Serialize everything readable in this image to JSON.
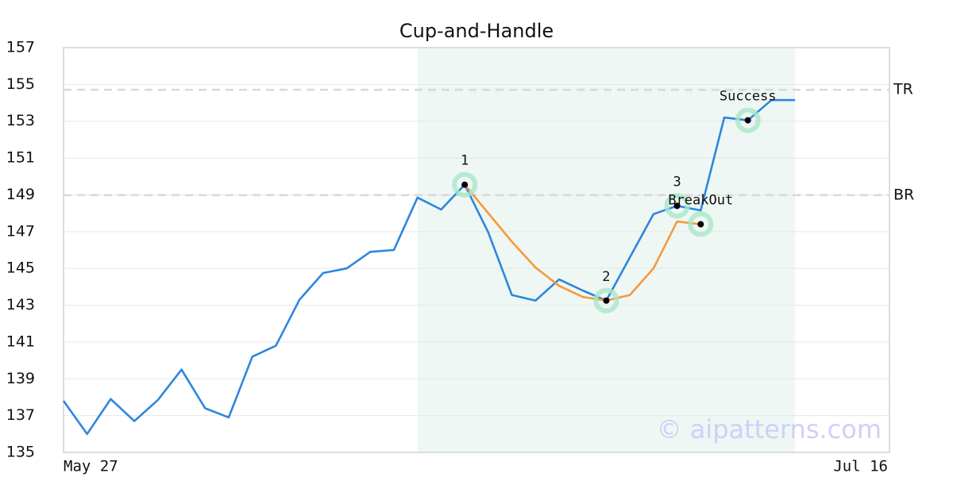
{
  "chart_data": {
    "type": "line",
    "title": "Cup-and-Handle",
    "x": [
      0,
      1,
      2,
      3,
      4,
      5,
      6,
      7,
      8,
      9,
      10,
      11,
      12,
      13,
      14,
      15,
      16,
      17,
      18,
      19,
      20,
      21,
      22,
      23,
      24,
      25,
      26,
      27,
      28,
      29,
      30,
      31
    ],
    "series": [
      {
        "color": "#2e86de",
        "values": [
          137.8,
          136.0,
          137.9,
          136.7,
          137.85,
          139.5,
          137.4,
          136.9,
          140.2,
          140.8,
          143.3,
          144.75,
          145.0,
          145.9,
          146.0,
          148.85,
          148.2,
          149.55,
          146.95,
          143.55,
          143.25,
          144.4,
          143.8,
          143.25,
          145.6,
          147.95,
          148.4,
          148.15,
          153.2,
          153.05,
          154.15,
          154.15
        ]
      },
      {
        "color": "#f59a3c",
        "values": [
          null,
          null,
          null,
          null,
          null,
          null,
          null,
          null,
          null,
          null,
          null,
          null,
          null,
          null,
          null,
          null,
          null,
          149.55,
          148.0,
          146.45,
          145.05,
          144.05,
          143.45,
          143.25,
          143.55,
          145.0,
          147.55,
          147.4,
          null,
          null,
          null,
          null
        ]
      }
    ],
    "points": [
      {
        "x": 17,
        "y": 149.55,
        "label": "1"
      },
      {
        "x": 23,
        "y": 143.25,
        "label": "2"
      },
      {
        "x": 26,
        "y": 148.4,
        "label": "3"
      },
      {
        "x": 27,
        "y": 147.4,
        "label": "BreakOut"
      },
      {
        "x": 29,
        "y": 153.05,
        "label": "Success"
      }
    ],
    "hlines": [
      {
        "y": 154.71,
        "label": "TR"
      },
      {
        "y": 148.98,
        "label": "BR"
      }
    ],
    "highlight": [
      15,
      31
    ],
    "xlim": [
      0,
      35
    ],
    "xticks": [
      {
        "value": 0,
        "label": "May 27"
      },
      {
        "value": 35,
        "label": "Jul 16"
      }
    ],
    "ylim": [
      135,
      157
    ],
    "yticks": [
      135,
      137,
      139,
      141,
      143,
      145,
      147,
      149,
      151,
      153,
      155,
      157
    ],
    "grid": true,
    "watermark": "© aipatterns.com"
  }
}
